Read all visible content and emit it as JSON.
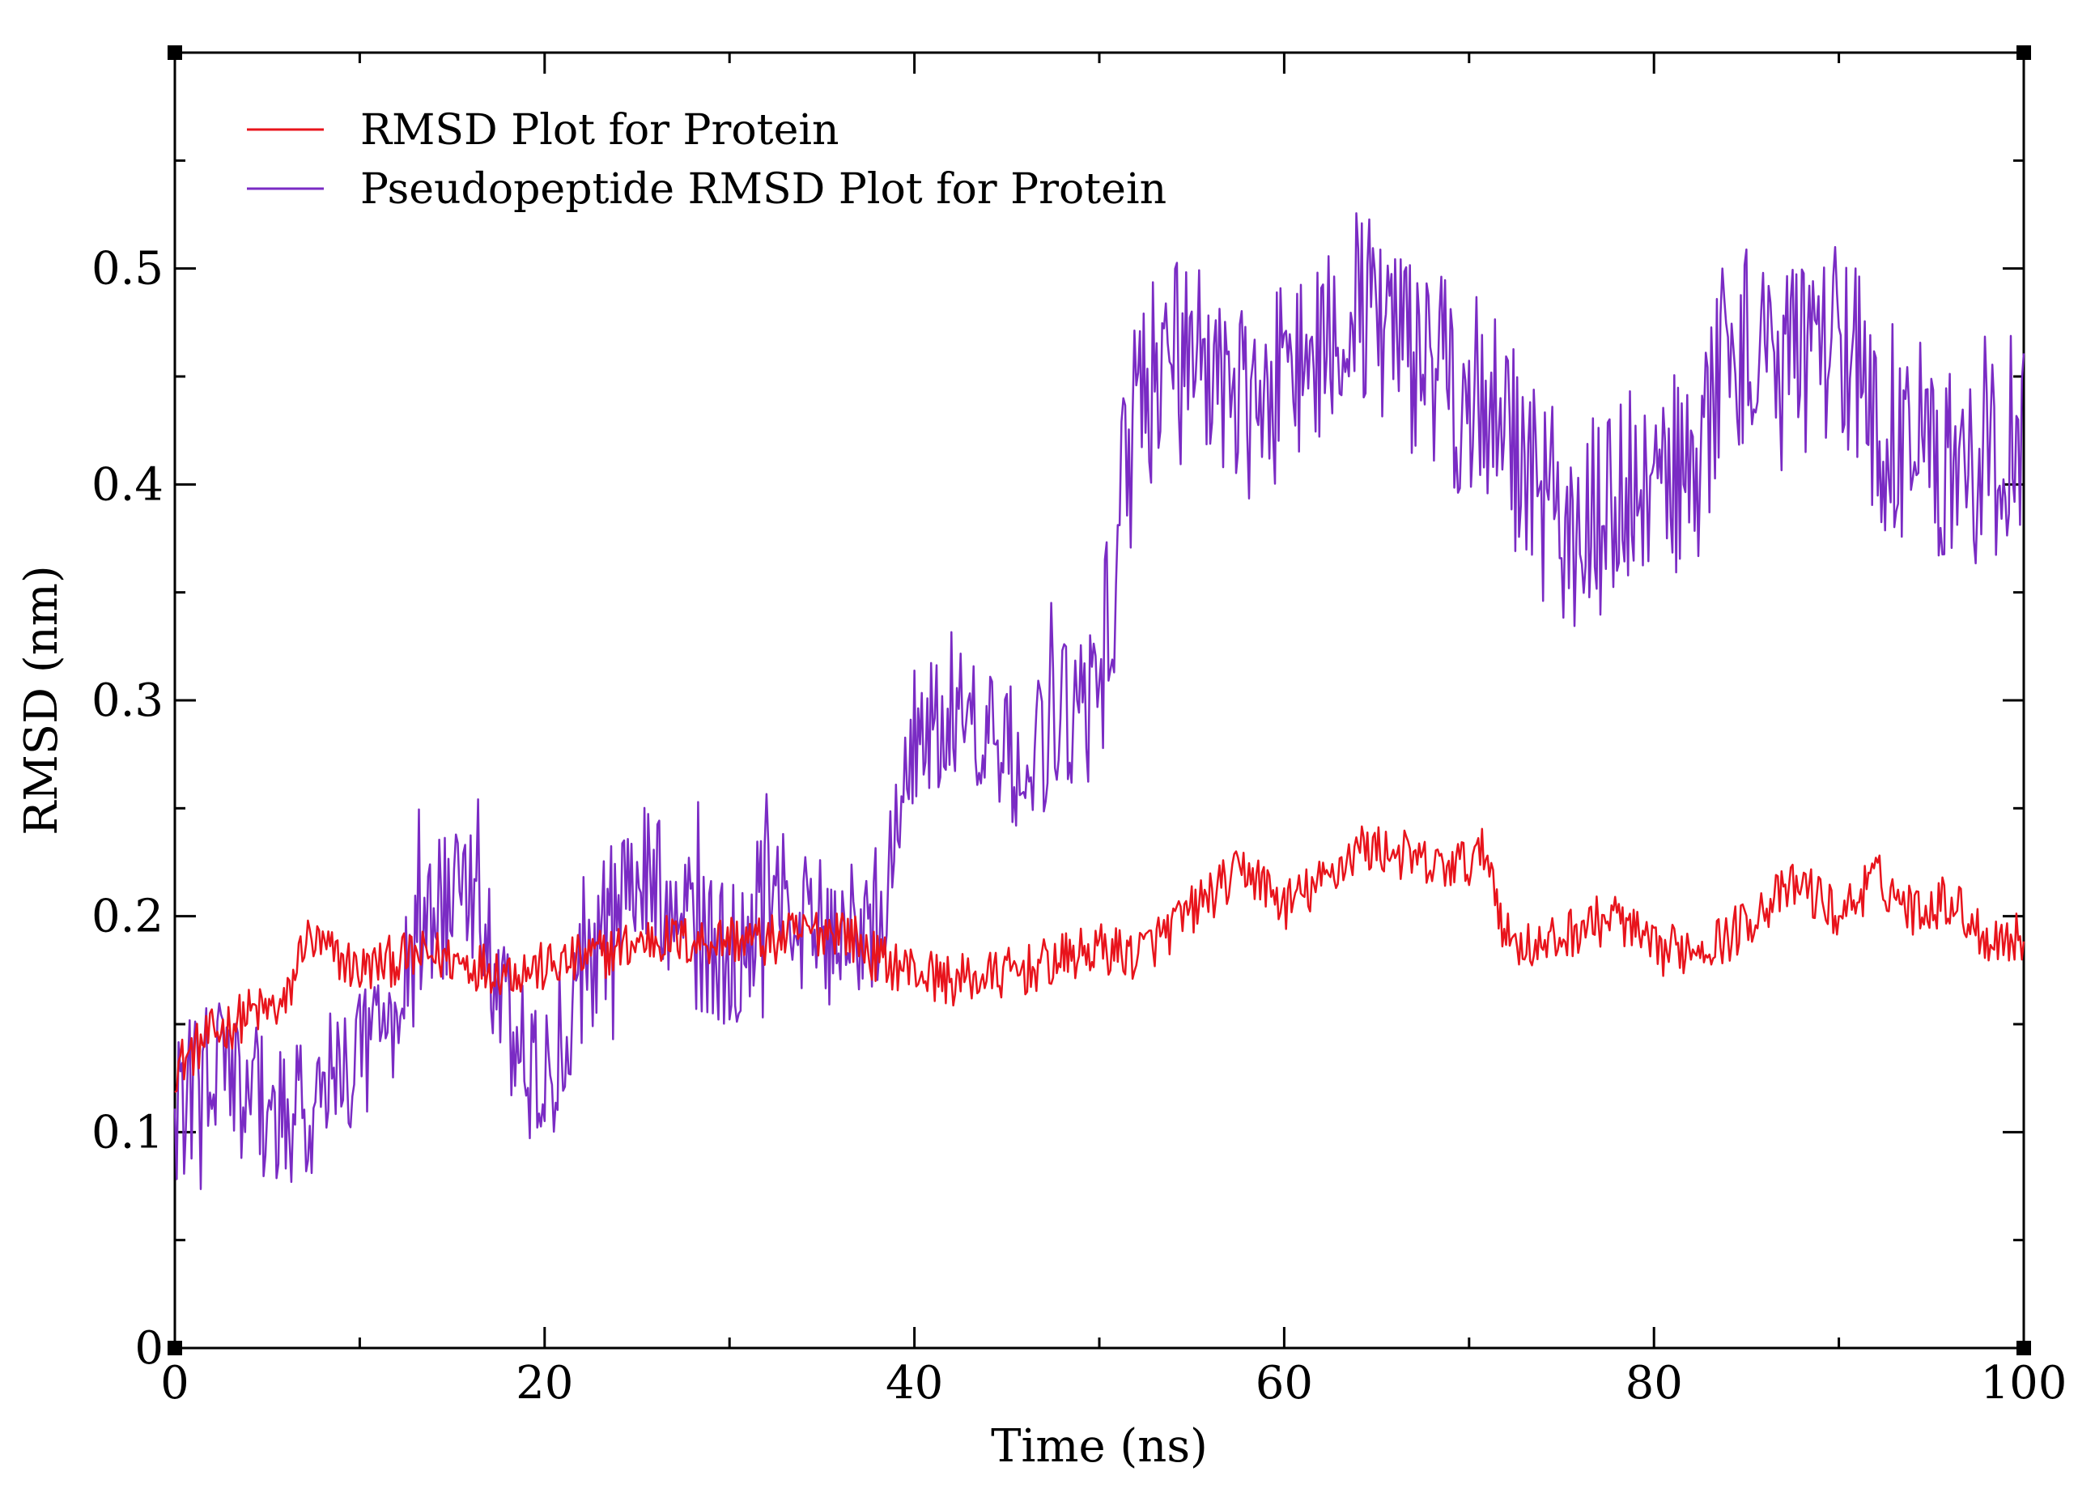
{
  "chart_data": {
    "type": "line",
    "title": "",
    "xlabel": "Time (ns)",
    "ylabel": "RMSD (nm)",
    "xlim": [
      0,
      100
    ],
    "ylim": [
      0,
      0.6
    ],
    "x_ticks": [
      0,
      20,
      40,
      60,
      80,
      100
    ],
    "x_tick_labels": [
      "0",
      "20",
      "40",
      "60",
      "80",
      "100"
    ],
    "y_ticks": [
      0,
      0.1,
      0.2,
      0.3,
      0.4,
      0.5
    ],
    "y_tick_labels": [
      "0",
      "0.1",
      "0.2",
      "0.3",
      "0.4",
      "0.5"
    ],
    "grid": false,
    "legend_position": "top-left",
    "series": [
      {
        "name": "RMSD Plot for Protein",
        "color": "#e8141c",
        "x": [
          0,
          2,
          4,
          6,
          7,
          8,
          10,
          12,
          14,
          16,
          18,
          20,
          22,
          24,
          26,
          28,
          30,
          32,
          34,
          36,
          38,
          40,
          42,
          44,
          46,
          48,
          50,
          52,
          54,
          56,
          58,
          60,
          62,
          64,
          66,
          68,
          70,
          71,
          72,
          74,
          76,
          78,
          80,
          82,
          84,
          86,
          88,
          90,
          92,
          94,
          96,
          98,
          100
        ],
        "y": [
          0.13,
          0.145,
          0.155,
          0.158,
          0.19,
          0.185,
          0.175,
          0.18,
          0.182,
          0.178,
          0.175,
          0.176,
          0.18,
          0.185,
          0.19,
          0.188,
          0.19,
          0.188,
          0.192,
          0.195,
          0.18,
          0.175,
          0.17,
          0.172,
          0.175,
          0.18,
          0.185,
          0.182,
          0.195,
          0.21,
          0.222,
          0.205,
          0.215,
          0.232,
          0.23,
          0.222,
          0.225,
          0.23,
          0.19,
          0.185,
          0.195,
          0.2,
          0.183,
          0.186,
          0.19,
          0.205,
          0.215,
          0.2,
          0.218,
          0.203,
          0.208,
          0.19,
          0.19
        ]
      },
      {
        "name": "Pseudopeptide RMSD Plot for Protein",
        "color": "#7a2bc4",
        "x": [
          0,
          2,
          4,
          6,
          8,
          10,
          12,
          14,
          16,
          18,
          20,
          22,
          24,
          26,
          28,
          30,
          32,
          34,
          36,
          38,
          40,
          42,
          44,
          46,
          48,
          50,
          51,
          52,
          54,
          56,
          58,
          60,
          62,
          64,
          66,
          68,
          70,
          72,
          74,
          76,
          78,
          80,
          82,
          84,
          86,
          88,
          90,
          92,
          94,
          96,
          98,
          100
        ],
        "y": [
          0.11,
          0.13,
          0.12,
          0.1,
          0.12,
          0.14,
          0.16,
          0.2,
          0.21,
          0.15,
          0.12,
          0.17,
          0.21,
          0.22,
          0.19,
          0.18,
          0.21,
          0.2,
          0.19,
          0.2,
          0.28,
          0.3,
          0.28,
          0.27,
          0.29,
          0.31,
          0.37,
          0.44,
          0.46,
          0.45,
          0.44,
          0.45,
          0.47,
          0.48,
          0.47,
          0.45,
          0.44,
          0.43,
          0.39,
          0.38,
          0.39,
          0.41,
          0.4,
          0.47,
          0.45,
          0.46,
          0.47,
          0.43,
          0.42,
          0.41,
          0.41,
          0.43
        ]
      }
    ]
  }
}
